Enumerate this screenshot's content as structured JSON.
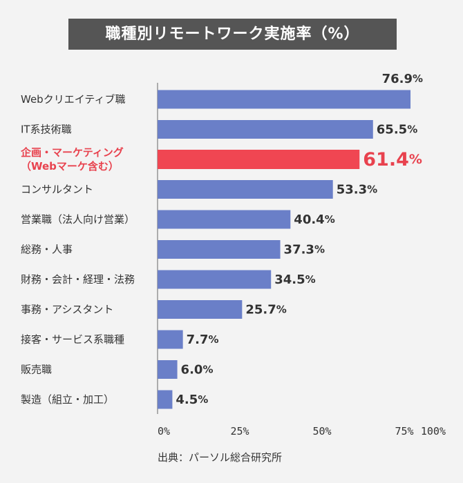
{
  "chart_data": {
    "type": "bar",
    "orientation": "horizontal",
    "title": "職種別リモートワーク実施率（%）",
    "categories": [
      [
        "Webクリエイティブ職"
      ],
      [
        "IT系技術職"
      ],
      [
        "企画・マーケティング",
        "（Webマーケ含む）"
      ],
      [
        "コンサルタント"
      ],
      [
        "営業職（法人向け営業）"
      ],
      [
        "総務・人事"
      ],
      [
        "財務・会計・経理・法務"
      ],
      [
        "事務・アシスタント"
      ],
      [
        "接客・サービス系職種"
      ],
      [
        "販売職"
      ],
      [
        "製造（組立・加工）"
      ]
    ],
    "values": [
      76.9,
      65.5,
      61.4,
      53.3,
      40.4,
      37.3,
      34.5,
      25.7,
      7.7,
      6.0,
      4.5
    ],
    "value_labels": [
      "76.9",
      "65.5",
      "61.4",
      "53.3",
      "40.4",
      "37.3",
      "34.5",
      "25.7",
      "7.7",
      "6.0",
      "4.5"
    ],
    "value_unit": "%",
    "highlight_index": 2,
    "xlim": [
      0,
      100
    ],
    "xticks": [
      "0%",
      "25%",
      "50%",
      "75%",
      "100%"
    ],
    "colors": {
      "bar": "#6a7fc8",
      "highlight": "#f04652",
      "axis": "#666666"
    }
  },
  "source": "出典：パーソル総合研究所"
}
